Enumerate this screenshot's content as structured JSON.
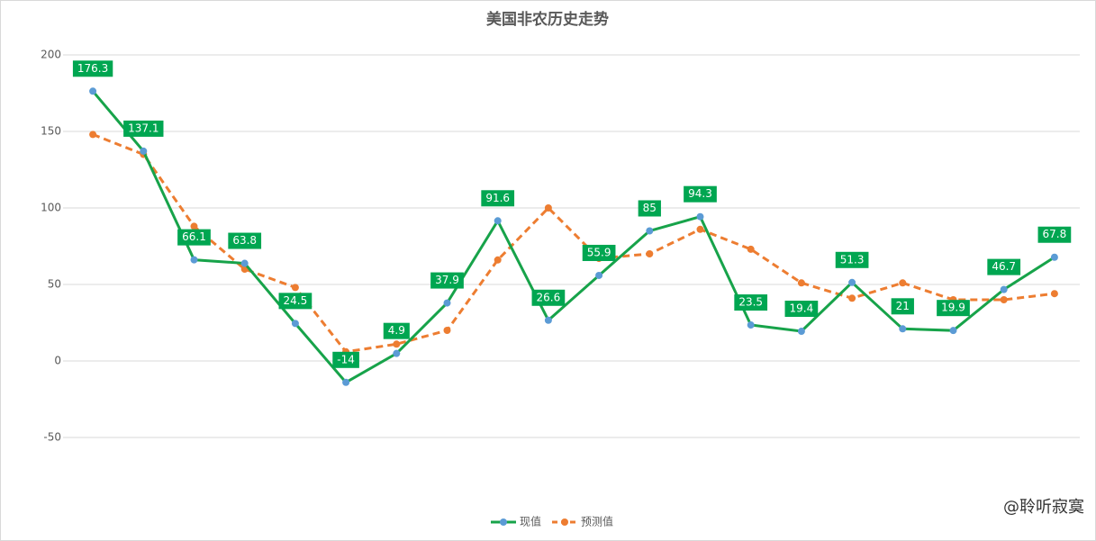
{
  "chart_data": {
    "type": "line",
    "title": "美国非农历史走势",
    "series": [
      {
        "name": "现值",
        "color": "#17a34a",
        "marker_color": "#5b9bd5",
        "values": [
          176.3,
          137.1,
          66.1,
          63.8,
          24.5,
          -14,
          4.9,
          37.9,
          91.6,
          26.6,
          55.9,
          85,
          94.3,
          23.5,
          19.4,
          51.3,
          21,
          19.9,
          46.7,
          67.8
        ]
      },
      {
        "name": "预测值",
        "color": "#ed7d31",
        "marker_color": "#ed7d31",
        "dashed": true,
        "values": [
          148,
          135,
          88,
          60,
          48,
          6,
          11,
          20,
          66,
          100,
          67,
          70,
          86,
          73,
          51,
          41,
          51,
          40,
          40,
          44
        ]
      }
    ],
    "data_labels_series": 0,
    "ylim": [
      -50,
      200
    ],
    "yticks": [
      -50,
      0,
      50,
      100,
      150,
      200
    ],
    "grid": true,
    "legend": "bottom",
    "watermark": "@聆听寂寞"
  }
}
